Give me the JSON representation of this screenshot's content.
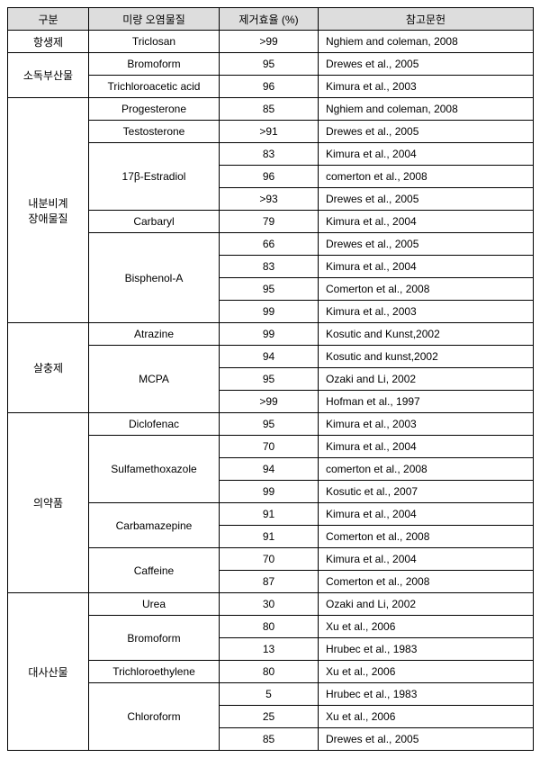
{
  "headers": [
    "구분",
    "미량 오염물질",
    "제거효율 (%)",
    "참고문헌"
  ],
  "rows": [
    {
      "category": "항생제",
      "catspan": 1,
      "pollutant": "Triclosan",
      "pspan": 1,
      "eff": ">99",
      "ref": "Nghiem and coleman, 2008"
    },
    {
      "category": "소독부산물",
      "catspan": 2,
      "pollutant": "Bromoform",
      "pspan": 1,
      "eff": "95",
      "ref": "Drewes et al., 2005"
    },
    {
      "pollutant": "Trichloroacetic acid",
      "pspan": 1,
      "eff": "96",
      "ref": "Kimura et al., 2003"
    },
    {
      "category": "내분비계\n장애물질",
      "catspan": 10,
      "pollutant": "Progesterone",
      "pspan": 1,
      "eff": "85",
      "ref": "Nghiem and coleman, 2008"
    },
    {
      "pollutant": "Testosterone",
      "pspan": 1,
      "eff": ">91",
      "ref": "Drewes et al., 2005"
    },
    {
      "pollutant": "17β-Estradiol",
      "pspan": 3,
      "eff": "83",
      "ref": "Kimura et al., 2004"
    },
    {
      "eff": "96",
      "ref": "comerton et al., 2008"
    },
    {
      "eff": ">93",
      "ref": "Drewes et al., 2005"
    },
    {
      "pollutant": "Carbaryl",
      "pspan": 1,
      "eff": "79",
      "ref": "Kimura et al., 2004"
    },
    {
      "pollutant": "Bisphenol-A",
      "pspan": 4,
      "eff": "66",
      "ref": "Drewes et al., 2005"
    },
    {
      "eff": "83",
      "ref": "Kimura et al., 2004"
    },
    {
      "eff": "95",
      "ref": "Comerton et al., 2008"
    },
    {
      "eff": "99",
      "ref": "Kimura et al., 2003"
    },
    {
      "category": "살충제",
      "catspan": 4,
      "pollutant": "Atrazine",
      "pspan": 1,
      "eff": "99",
      "ref": "Kosutic and Kunst,2002"
    },
    {
      "pollutant": "MCPA",
      "pspan": 3,
      "eff": "94",
      "ref": "Kosutic and kunst,2002"
    },
    {
      "eff": "95",
      "ref": "Ozaki and Li, 2002"
    },
    {
      "eff": ">99",
      "ref": "Hofman et al., 1997"
    },
    {
      "category": "의약품",
      "catspan": 8,
      "pollutant": "Diclofenac",
      "pspan": 1,
      "eff": "95",
      "ref": "Kimura et al., 2003"
    },
    {
      "pollutant": "Sulfamethoxazole",
      "pspan": 3,
      "eff": "70",
      "ref": "Kimura et al., 2004"
    },
    {
      "eff": "94",
      "ref": "comerton et al., 2008"
    },
    {
      "eff": "99",
      "ref": "Kosutic et al., 2007"
    },
    {
      "pollutant": "Carbamazepine",
      "pspan": 2,
      "eff": "91",
      "ref": "Kimura et al., 2004"
    },
    {
      "eff": "91",
      "ref": "Comerton et al., 2008"
    },
    {
      "pollutant": "Caffeine",
      "pspan": 2,
      "eff": "70",
      "ref": "Kimura et al., 2004"
    },
    {
      "eff": "87",
      "ref": "Comerton et al., 2008"
    },
    {
      "category": "대사산물",
      "catspan": 7,
      "pollutant": "Urea",
      "pspan": 1,
      "eff": "30",
      "ref": "Ozaki and Li, 2002"
    },
    {
      "pollutant": "Bromoform",
      "pspan": 2,
      "eff": "80",
      "ref": "Xu et al., 2006"
    },
    {
      "eff": "13",
      "ref": "Hrubec et al., 1983"
    },
    {
      "pollutant": "Trichloroethylene",
      "pspan": 1,
      "eff": "80",
      "ref": "Xu et al., 2006"
    },
    {
      "pollutant": "Chloroform",
      "pspan": 3,
      "eff": "5",
      "ref": "Hrubec et al., 1983"
    },
    {
      "eff": "25",
      "ref": "Xu et al., 2006"
    },
    {
      "eff": "85",
      "ref": "Drewes et al., 2005"
    }
  ]
}
